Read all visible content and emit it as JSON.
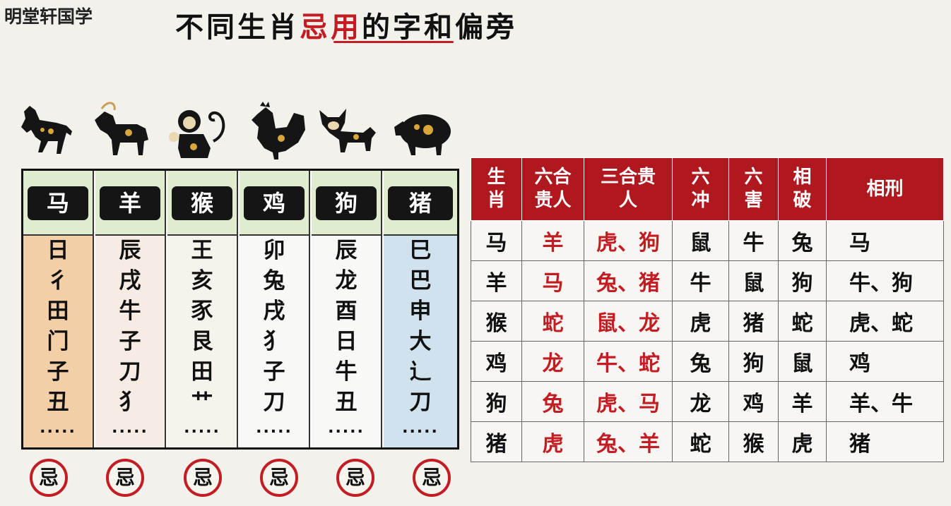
{
  "brand": "明堂轩国学",
  "title": {
    "part1": "不同生肖",
    "highlight": "忌用",
    "part2": "的字和偏旁"
  },
  "animals": [
    "horse-icon",
    "goat-icon",
    "monkey-icon",
    "rooster-icon",
    "dog-icon",
    "pig-icon"
  ],
  "zodiac": [
    {
      "name": "马",
      "chars": [
        "日",
        "彳",
        "田",
        "门",
        "子",
        "丑",
        "....."
      ]
    },
    {
      "name": "羊",
      "chars": [
        "辰",
        "戌",
        "牛",
        "子",
        "刀",
        "犭",
        "....."
      ]
    },
    {
      "name": "猴",
      "chars": [
        "王",
        "亥",
        "豕",
        "艮",
        "田",
        "艹",
        "....."
      ]
    },
    {
      "name": "鸡",
      "chars": [
        "卯",
        "兔",
        "戌",
        "犭",
        "子",
        "刀",
        "....."
      ]
    },
    {
      "name": "狗",
      "chars": [
        "辰",
        "龙",
        "酉",
        "日",
        "牛",
        "丑",
        "....."
      ]
    },
    {
      "name": "猪",
      "chars": [
        "巳",
        "巴",
        "申",
        "大",
        "辶",
        "刀",
        "....."
      ]
    }
  ],
  "column_colors": [
    "#f3cfa7",
    "#f7ece4",
    "#f6f2ec",
    "#f8f8f7",
    "#f8f8f7",
    "#cfe2ee"
  ],
  "ji_label": "忌",
  "table": {
    "headers": [
      "生肖",
      "六合贵人",
      "三合贵人",
      "六冲",
      "六害",
      "相破",
      "相刑"
    ],
    "rows": [
      [
        "马",
        "羊",
        "虎、狗",
        "鼠",
        "牛",
        "兔",
        "马"
      ],
      [
        "羊",
        "马",
        "兔、猪",
        "牛",
        "鼠",
        "狗",
        "牛、狗"
      ],
      [
        "猴",
        "蛇",
        "鼠、龙",
        "虎",
        "猪",
        "蛇",
        "虎、蛇"
      ],
      [
        "鸡",
        "龙",
        "牛、蛇",
        "兔",
        "狗",
        "鼠",
        "鸡"
      ],
      [
        "狗",
        "兔",
        "虎、马",
        "龙",
        "鸡",
        "羊",
        "羊、牛"
      ],
      [
        "猪",
        "虎",
        "兔、羊",
        "蛇",
        "猴",
        "虎",
        "猪"
      ]
    ]
  },
  "colors": {
    "accent_red": "#c21d23",
    "header_red": "#b0181f",
    "label_green": "#dfeccd"
  }
}
